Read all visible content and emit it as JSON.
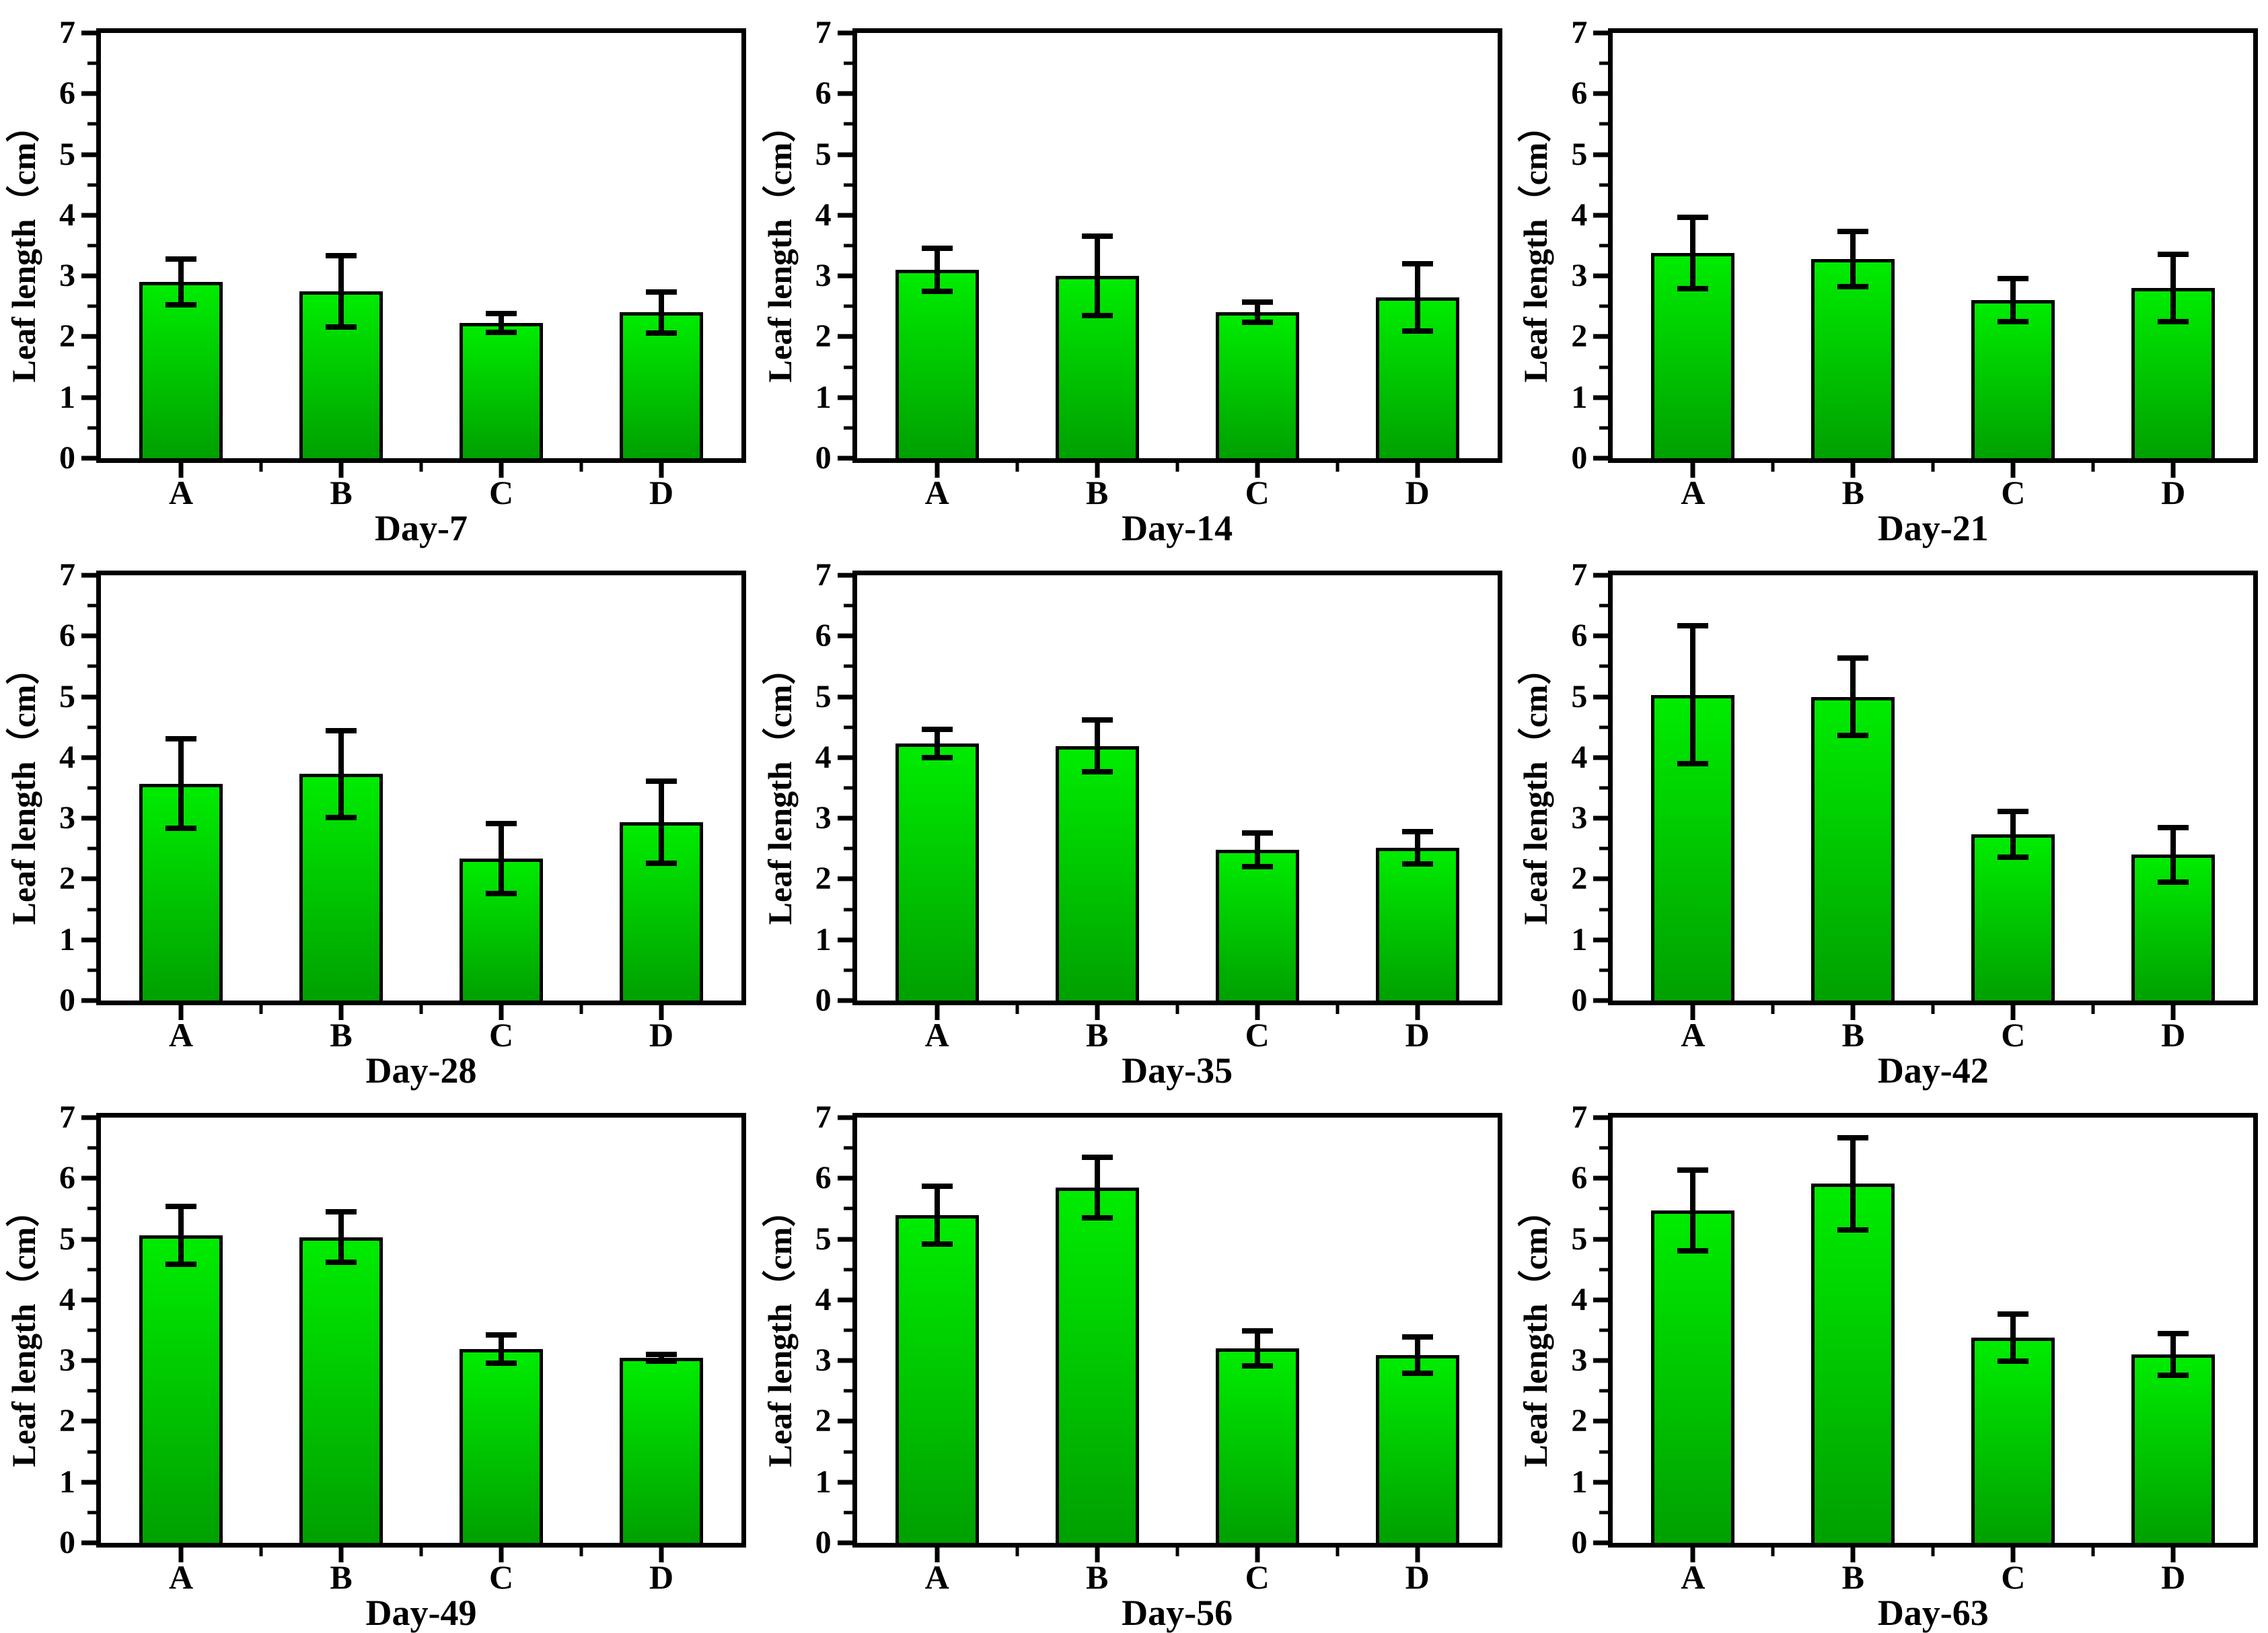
{
  "figure": {
    "y_axis_title": "Leaf length（cm）",
    "y_ticks": [
      0,
      1,
      2,
      3,
      4,
      5,
      6,
      7
    ],
    "y_minor_step": 0.5,
    "ylim": [
      0,
      7
    ],
    "categories": [
      "A",
      "B",
      "C",
      "D"
    ],
    "colors": {
      "bar_gradient_top": "#00ec00",
      "bar_gradient_bottom": "#00a000",
      "bar_border": "#000000",
      "error_bar": "#000000",
      "axis": "#000000"
    }
  },
  "chart_data": [
    {
      "type": "bar",
      "title": "Day-7",
      "xlabel": "Day-7",
      "ylabel": "Leaf length（cm）",
      "ylim": [
        0,
        7
      ],
      "categories": [
        "A",
        "B",
        "C",
        "D"
      ],
      "values": [
        2.9,
        2.75,
        2.23,
        2.4
      ],
      "errors": [
        0.42,
        0.63,
        0.2,
        0.38
      ]
    },
    {
      "type": "bar",
      "title": "Day-14",
      "xlabel": "Day-14",
      "ylabel": "Leaf length（cm）",
      "ylim": [
        0,
        7
      ],
      "categories": [
        "A",
        "B",
        "C",
        "D"
      ],
      "values": [
        3.1,
        3.0,
        2.4,
        2.65
      ],
      "errors": [
        0.4,
        0.7,
        0.21,
        0.6
      ]
    },
    {
      "type": "bar",
      "title": "Day-21",
      "xlabel": "Day-21",
      "ylabel": "Leaf length（cm）",
      "ylim": [
        0,
        7
      ],
      "categories": [
        "A",
        "B",
        "C",
        "D"
      ],
      "values": [
        3.38,
        3.28,
        2.6,
        2.8
      ],
      "errors": [
        0.63,
        0.5,
        0.4,
        0.6
      ]
    },
    {
      "type": "bar",
      "title": "Day-28",
      "xlabel": "Day-28",
      "ylabel": "Leaf length（cm）",
      "ylim": [
        0,
        7
      ],
      "categories": [
        "A",
        "B",
        "C",
        "D"
      ],
      "values": [
        3.57,
        3.73,
        2.34,
        2.94
      ],
      "errors": [
        0.78,
        0.76,
        0.62,
        0.72
      ]
    },
    {
      "type": "bar",
      "title": "Day-35",
      "xlabel": "Day-35",
      "ylabel": "Leaf length（cm）",
      "ylim": [
        0,
        7
      ],
      "categories": [
        "A",
        "B",
        "C",
        "D"
      ],
      "values": [
        4.23,
        4.19,
        2.48,
        2.51
      ],
      "errors": [
        0.28,
        0.47,
        0.32,
        0.31
      ]
    },
    {
      "type": "bar",
      "title": "Day-42",
      "xlabel": "Day-42",
      "ylabel": "Leaf length（cm）",
      "ylim": [
        0,
        7
      ],
      "categories": [
        "A",
        "B",
        "C",
        "D"
      ],
      "values": [
        5.03,
        5.0,
        2.74,
        2.4
      ],
      "errors": [
        1.18,
        0.68,
        0.42,
        0.49
      ]
    },
    {
      "type": "bar",
      "title": "Day-49",
      "xlabel": "Day-49",
      "ylabel": "Leaf length（cm）",
      "ylim": [
        0,
        7
      ],
      "categories": [
        "A",
        "B",
        "C",
        "D"
      ],
      "values": [
        5.06,
        5.03,
        3.19,
        3.05
      ],
      "errors": [
        0.52,
        0.46,
        0.28,
        0.1
      ]
    },
    {
      "type": "bar",
      "title": "Day-56",
      "xlabel": "Day-56",
      "ylabel": "Leaf length（cm）",
      "ylim": [
        0,
        7
      ],
      "categories": [
        "A",
        "B",
        "C",
        "D"
      ],
      "values": [
        5.39,
        5.85,
        3.2,
        3.09
      ],
      "errors": [
        0.52,
        0.54,
        0.33,
        0.34
      ]
    },
    {
      "type": "bar",
      "title": "Day-63",
      "xlabel": "Day-63",
      "ylabel": "Leaf length（cm）",
      "ylim": [
        0,
        7
      ],
      "categories": [
        "A",
        "B",
        "C",
        "D"
      ],
      "values": [
        5.47,
        5.91,
        3.38,
        3.1
      ],
      "errors": [
        0.71,
        0.8,
        0.43,
        0.39
      ]
    }
  ]
}
